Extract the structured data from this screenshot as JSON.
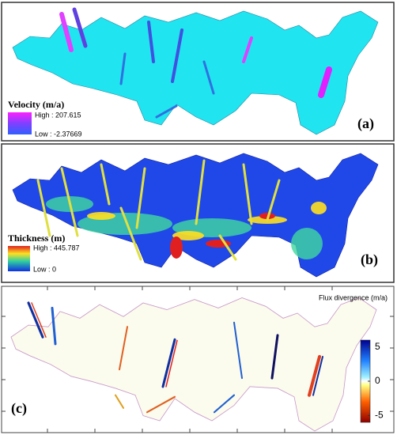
{
  "panels": [
    {
      "label": "(a)",
      "legend_title": "Velocity (m/a)",
      "high": "High : 207.615",
      "low": "Low : -2.37669"
    },
    {
      "label": "(b)",
      "legend_title": "Thickness (m)",
      "high": "High : 445.787",
      "low": "Low : 0"
    },
    {
      "label": "(c)",
      "title": "Flux divergence (m/a)",
      "clim": [
        -6,
        6
      ],
      "colorbar_ticks": [
        5,
        0,
        -5
      ]
    }
  ]
}
